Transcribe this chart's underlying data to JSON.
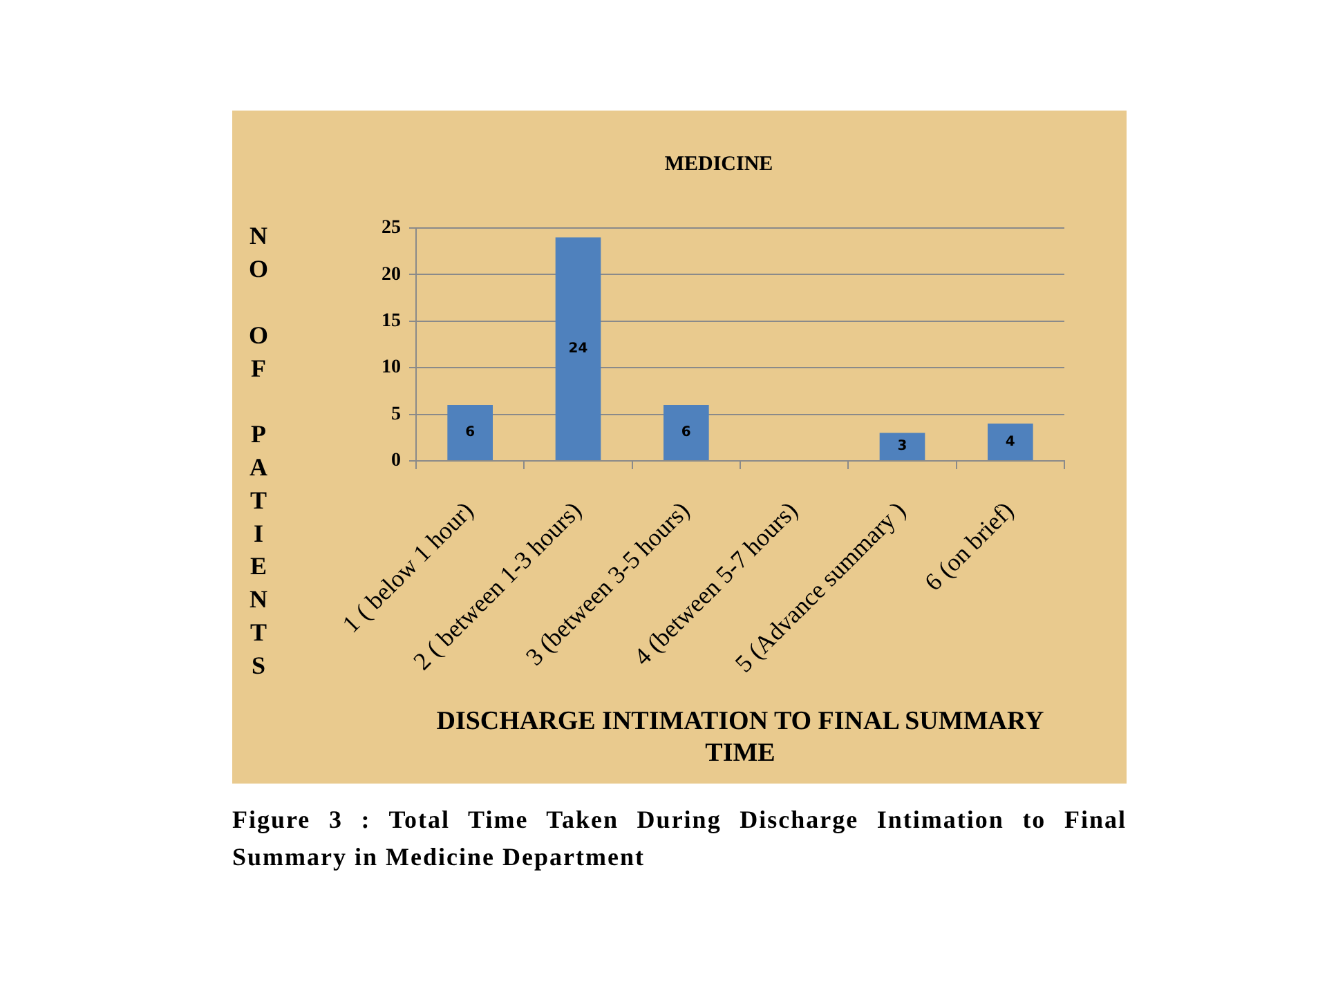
{
  "chart_data": {
    "type": "bar",
    "title": "MEDICINE",
    "xlabel": "DISCHARGE INTIMATION TO FINAL SUMMARY TIME",
    "ylabel": "NO OF PATIENTS",
    "categories": [
      "1 ( below 1 hour)",
      "2 ( between 1-3 hours)",
      "3 (between 3-5 hours)",
      "4 (between 5-7 hours)",
      "5 (Advance summary )",
      "6 (on brief)"
    ],
    "values": [
      6,
      24,
      6,
      0,
      3,
      4
    ],
    "value_labels": [
      "6",
      "24",
      "6",
      null,
      "3",
      "4"
    ],
    "color": "#4f81bd",
    "ylim": [
      0,
      25
    ],
    "yticks": [
      0,
      5,
      10,
      15,
      20,
      25
    ],
    "grid": "y",
    "annotations": [
      "Figure 3 : Total Time Taken During Discharge Intimation to Final Summary in Medicine Department"
    ]
  }
}
